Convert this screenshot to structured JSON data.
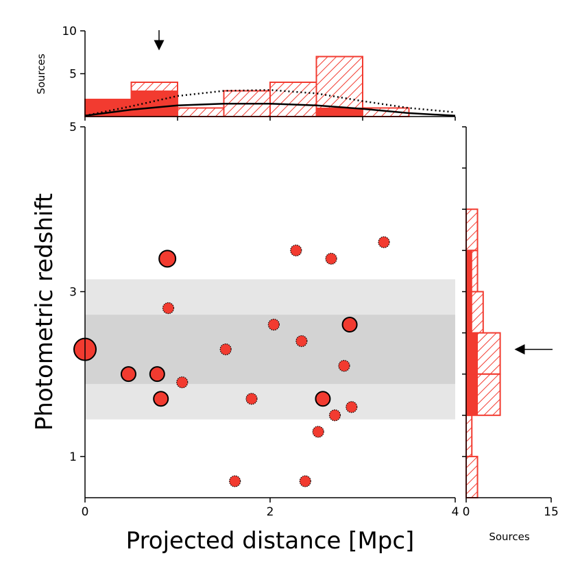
{
  "chart_data": [
    {
      "panel": "main-scatter",
      "type": "scatter",
      "xlabel": "Projected distance [Mpc]",
      "ylabel": "Photometric redshift",
      "xlim": [
        0,
        4
      ],
      "ylim": [
        0.5,
        5
      ],
      "xticks": [
        "0",
        "2",
        "4"
      ],
      "yticks": [
        "1",
        "3",
        "5"
      ],
      "bands": [
        {
          "name": "outer",
          "z_min": 1.45,
          "z_max": 3.15,
          "color": "#e6e6e6"
        },
        {
          "name": "inner",
          "z_min": 1.88,
          "z_max": 2.72,
          "color": "#d3d3d3"
        }
      ],
      "points": [
        {
          "x": 0.0,
          "z": 2.3,
          "size": "xlarge",
          "outline": "solid"
        },
        {
          "x": 0.47,
          "z": 2.0,
          "size": "medium",
          "outline": "solid"
        },
        {
          "x": 0.78,
          "z": 2.0,
          "size": "medium",
          "outline": "solid"
        },
        {
          "x": 0.82,
          "z": 1.7,
          "size": "medium",
          "outline": "solid"
        },
        {
          "x": 0.89,
          "z": 3.4,
          "size": "large",
          "outline": "solid"
        },
        {
          "x": 0.9,
          "z": 2.8,
          "size": "small",
          "outline": "dotted"
        },
        {
          "x": 1.05,
          "z": 1.9,
          "size": "small",
          "outline": "dotted"
        },
        {
          "x": 1.52,
          "z": 2.3,
          "size": "small",
          "outline": "dotted"
        },
        {
          "x": 1.62,
          "z": 0.7,
          "size": "small",
          "outline": "dotted"
        },
        {
          "x": 1.8,
          "z": 1.7,
          "size": "small",
          "outline": "dotted"
        },
        {
          "x": 2.04,
          "z": 2.6,
          "size": "small",
          "outline": "dotted"
        },
        {
          "x": 2.28,
          "z": 3.5,
          "size": "small",
          "outline": "dotted"
        },
        {
          "x": 2.34,
          "z": 2.4,
          "size": "small",
          "outline": "dotted"
        },
        {
          "x": 2.38,
          "z": 0.7,
          "size": "small",
          "outline": "dotted"
        },
        {
          "x": 2.52,
          "z": 1.3,
          "size": "small",
          "outline": "dotted"
        },
        {
          "x": 2.57,
          "z": 1.7,
          "size": "medium",
          "outline": "solid"
        },
        {
          "x": 2.66,
          "z": 3.4,
          "size": "small",
          "outline": "dotted"
        },
        {
          "x": 2.7,
          "z": 1.5,
          "size": "small",
          "outline": "dotted"
        },
        {
          "x": 2.8,
          "z": 2.1,
          "size": "small",
          "outline": "dotted"
        },
        {
          "x": 2.86,
          "z": 2.6,
          "size": "medium",
          "outline": "solid"
        },
        {
          "x": 2.88,
          "z": 1.6,
          "size": "small",
          "outline": "dotted"
        },
        {
          "x": 3.23,
          "z": 3.6,
          "size": "small",
          "outline": "dotted"
        }
      ]
    },
    {
      "panel": "top-histogram",
      "type": "bar",
      "ylabel": "Sources",
      "ylim": [
        0,
        10
      ],
      "yticks": [
        "5",
        "10"
      ],
      "bin_edges": [
        0,
        0.5,
        1.0,
        1.5,
        2.0,
        2.5,
        3.0,
        3.5
      ],
      "hatched_counts": [
        2,
        4,
        1,
        3,
        4,
        7,
        1
      ],
      "filled_counts": [
        2,
        3,
        0,
        0,
        0,
        1,
        0
      ],
      "curves": [
        {
          "name": "dotted-model",
          "style": "dotted",
          "x": [
            0,
            0.5,
            1.0,
            1.5,
            2.0,
            2.5,
            3.0,
            3.5,
            4.0
          ],
          "y": [
            0.1,
            1.2,
            2.4,
            3.0,
            3.1,
            2.7,
            1.8,
            1.0,
            0.5
          ]
        },
        {
          "name": "solid-model",
          "style": "solid",
          "x": [
            0,
            0.5,
            1.0,
            1.5,
            2.0,
            2.5,
            3.0,
            3.5,
            4.0
          ],
          "y": [
            0.1,
            0.8,
            1.3,
            1.5,
            1.5,
            1.3,
            0.9,
            0.4,
            0.1
          ]
        }
      ],
      "arrow_x": 0.8
    },
    {
      "panel": "right-histogram",
      "type": "bar",
      "orientation": "horizontal",
      "xlabel": "Sources",
      "xlim": [
        0,
        15
      ],
      "xticks": [
        "0",
        "15"
      ],
      "bin_edges": [
        0.5,
        1.0,
        1.5,
        2.0,
        2.5,
        3.0,
        3.5,
        4.0,
        4.5,
        5.0
      ],
      "hatched_counts": [
        2,
        1,
        6,
        6,
        3,
        2,
        2,
        0,
        0
      ],
      "filled_counts": [
        0,
        0,
        2,
        2,
        1,
        1,
        0,
        0,
        0
      ],
      "arrow_z": 2.3
    }
  ]
}
